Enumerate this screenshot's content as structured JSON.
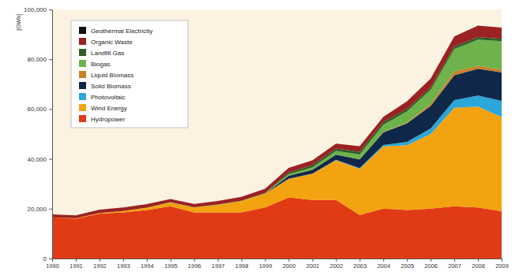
{
  "chart_data": {
    "type": "stacked_area",
    "stacked": true,
    "y_label": "[GWh]",
    "x": [
      1990,
      1991,
      1992,
      1993,
      1994,
      1995,
      1996,
      1997,
      1998,
      1999,
      2000,
      2001,
      2002,
      2003,
      2004,
      2005,
      2006,
      2007,
      2008,
      2009
    ],
    "xlim": [
      1990,
      2009
    ],
    "xticks": [
      1990,
      1991,
      1992,
      1993,
      1994,
      1995,
      1996,
      1997,
      1998,
      1999,
      2000,
      2001,
      2002,
      2003,
      2004,
      2005,
      2006,
      2007,
      2008,
      2009
    ],
    "ylim": [
      0,
      100000
    ],
    "yticks": [
      0,
      {
        "value": 20000,
        "label": "20,000"
      },
      {
        "value": 40000,
        "label": "40,000"
      },
      {
        "value": 60000,
        "label": "60,000"
      },
      {
        "value": 80000,
        "label": "80,000"
      },
      {
        "value": 100000,
        "label": "100,000"
      }
    ],
    "grid": false,
    "legend": "top-left",
    "series": [
      {
        "name": "Geothermal Electricity",
        "color": "#111111",
        "values": [
          0,
          0,
          0,
          0,
          0,
          0,
          0,
          0,
          0,
          0,
          0,
          0,
          0,
          0,
          0.2,
          0.2,
          0.4,
          0.4,
          18,
          19
        ]
      },
      {
        "name": "Organic Waste",
        "color": "#9b2222",
        "values": [
          1200,
          1200,
          1300,
          1400,
          1400,
          1300,
          1300,
          1400,
          1600,
          1700,
          1800,
          1900,
          2000,
          2200,
          2100,
          3000,
          3500,
          4100,
          4600,
          4500
        ]
      },
      {
        "name": "Landfill Gas",
        "color": "#2e5e27",
        "values": [
          0,
          0,
          0,
          0,
          0,
          0,
          0,
          0,
          0,
          0,
          700,
          900,
          1000,
          1100,
          1100,
          1000,
          1000,
          1000,
          1000,
          900
        ]
      },
      {
        "name": "Biogas",
        "color": "#6db24a",
        "values": [
          0,
          0,
          0,
          0,
          0,
          100,
          100,
          200,
          200,
          300,
          600,
          1000,
          1500,
          2000,
          3000,
          4500,
          5500,
          9000,
          10500,
          11500
        ]
      },
      {
        "name": "Liquid Biomass",
        "color": "#c8802c",
        "values": [
          0,
          0,
          0,
          0,
          0,
          0,
          0,
          0,
          0,
          0,
          0,
          0,
          0,
          0,
          100,
          300,
          1000,
          1500,
          1200,
          1000
        ]
      },
      {
        "name": "Solid Biomass",
        "color": "#0f2749",
        "values": [
          0,
          0,
          0,
          0,
          0,
          0,
          0,
          0,
          0,
          0,
          1200,
          1500,
          2000,
          3500,
          5000,
          7500,
          9000,
          10000,
          10800,
          11500
        ]
      },
      {
        "name": "Photovoltaic",
        "color": "#2aa7d8",
        "values": [
          0,
          0,
          0,
          0,
          0,
          0,
          0,
          0,
          0,
          0,
          60,
          80,
          160,
          300,
          600,
          1300,
          2200,
          3100,
          4400,
          6500
        ]
      },
      {
        "name": "Wind Energy",
        "color": "#f3a30f",
        "values": [
          0,
          100,
          300,
          600,
          900,
          1500,
          2000,
          3000,
          4500,
          5500,
          7500,
          10500,
          16000,
          18500,
          25000,
          26000,
          30000,
          39500,
          40500,
          37800
        ]
      },
      {
        "name": "Hydropower",
        "color": "#e13b15",
        "values": [
          16500,
          16000,
          18000,
          18500,
          19500,
          21000,
          18500,
          18500,
          18500,
          20500,
          24500,
          23500,
          23500,
          17500,
          20000,
          19500,
          20000,
          21000,
          20500,
          19000
        ]
      }
    ]
  }
}
